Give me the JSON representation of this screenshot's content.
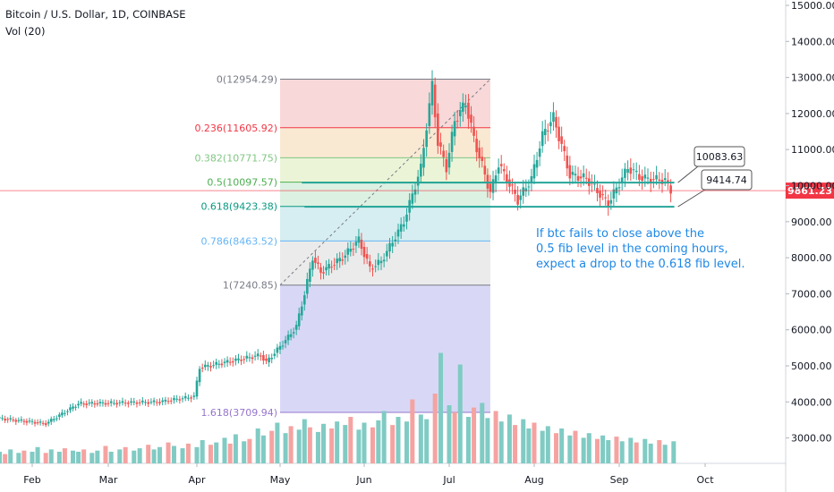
{
  "header": {
    "symbol_title": "Bitcoin / U.S. Dollar, 1D, COINBASE",
    "volume_indicator": "Vol (20)"
  },
  "colors": {
    "up": "#26a69a",
    "down": "#ef5350",
    "price_line": "#f23645",
    "fib_line": "#26a69a",
    "annotation": "#1e88e5",
    "axis_bg": "#ffffff"
  },
  "chart_data": {
    "type": "candlestick",
    "title": "Bitcoin / U.S. Dollar, 1D, COINBASE",
    "x_months": [
      "Feb",
      "Mar",
      "Apr",
      "May",
      "Jun",
      "Jul",
      "Aug",
      "Sep",
      "Oct"
    ],
    "y_ticks": [
      "15000.00",
      "14000.00",
      "13000.00",
      "12000.00",
      "11000.00",
      "10000.00",
      "9000.00",
      "8000.00",
      "7000.00",
      "6000.00",
      "5000.00",
      "4000.00",
      "3000.00"
    ],
    "ylim": [
      2300,
      15200
    ],
    "current_price": "9861.23",
    "current_price_value": 9861.23,
    "price_path": [
      {
        "date": "2019-01-20",
        "price": 3550
      },
      {
        "date": "2019-02-07",
        "price": 3400
      },
      {
        "date": "2019-02-19",
        "price": 3950
      },
      {
        "date": "2019-03-20",
        "price": 4000
      },
      {
        "date": "2019-04-01",
        "price": 4150
      },
      {
        "date": "2019-04-03",
        "price": 4950
      },
      {
        "date": "2019-04-25",
        "price": 5300
      },
      {
        "date": "2019-04-27",
        "price": 5100
      },
      {
        "date": "2019-05-01",
        "price": 5450
      },
      {
        "date": "2019-05-05",
        "price": 5800
      },
      {
        "date": "2019-05-08",
        "price": 6100
      },
      {
        "date": "2019-05-11",
        "price": 7000
      },
      {
        "date": "2019-05-14",
        "price": 8000
      },
      {
        "date": "2019-05-17",
        "price": 7600
      },
      {
        "date": "2019-05-25",
        "price": 8000
      },
      {
        "date": "2019-05-31",
        "price": 8500
      },
      {
        "date": "2019-06-04",
        "price": 7700
      },
      {
        "date": "2019-06-08",
        "price": 7900
      },
      {
        "date": "2019-06-16",
        "price": 9000
      },
      {
        "date": "2019-06-22",
        "price": 10500
      },
      {
        "date": "2019-06-26",
        "price": 12800
      },
      {
        "date": "2019-06-28",
        "price": 11200
      },
      {
        "date": "2019-07-01",
        "price": 10500
      },
      {
        "date": "2019-07-04",
        "price": 11800
      },
      {
        "date": "2019-07-08",
        "price": 12300
      },
      {
        "date": "2019-07-11",
        "price": 11300
      },
      {
        "date": "2019-07-17",
        "price": 9800
      },
      {
        "date": "2019-07-20",
        "price": 10600
      },
      {
        "date": "2019-07-27",
        "price": 9600
      },
      {
        "date": "2019-08-01",
        "price": 10200
      },
      {
        "date": "2019-08-05",
        "price": 11400
      },
      {
        "date": "2019-08-09",
        "price": 11900
      },
      {
        "date": "2019-08-15",
        "price": 10300
      },
      {
        "date": "2019-08-21",
        "price": 10200
      },
      {
        "date": "2019-08-29",
        "price": 9500
      },
      {
        "date": "2019-09-05",
        "price": 10500
      },
      {
        "date": "2019-09-10",
        "price": 10200
      },
      {
        "date": "2019-09-18",
        "price": 10150
      },
      {
        "date": "2019-09-20",
        "price": 9861
      }
    ],
    "volume_relative_levels": [
      0.1,
      0.08,
      0.12,
      0.09,
      0.11,
      0.1,
      0.14,
      0.09,
      0.12,
      0.1,
      0.13,
      0.11,
      0.1,
      0.12,
      0.09,
      0.11,
      0.15,
      0.1,
      0.12,
      0.14,
      0.11,
      0.13,
      0.16,
      0.12,
      0.14,
      0.18,
      0.15,
      0.13,
      0.17,
      0.14,
      0.2,
      0.16,
      0.18,
      0.22,
      0.17,
      0.25,
      0.19,
      0.21,
      0.3,
      0.24,
      0.28,
      0.35,
      0.26,
      0.32,
      0.29,
      0.38,
      0.31,
      0.27,
      0.34,
      0.3,
      0.36,
      0.33,
      0.4,
      0.29,
      0.35,
      0.31,
      0.37,
      0.45,
      0.33,
      0.4,
      0.36,
      0.55,
      0.42,
      0.38,
      0.6,
      0.95,
      0.5,
      0.44,
      0.85,
      0.4,
      0.48,
      0.52,
      0.39,
      0.45,
      0.36,
      0.42,
      0.33,
      0.38,
      0.3,
      0.35,
      0.28,
      0.32,
      0.26,
      0.3,
      0.24,
      0.28,
      0.22,
      0.26,
      0.21,
      0.24,
      0.2,
      0.23,
      0.19,
      0.22,
      0.18,
      0.21,
      0.17,
      0.2,
      0.16,
      0.19
    ],
    "fib_levels": [
      {
        "label": "0(12954.29)",
        "value": 12954.29,
        "color": "#787b86",
        "fill": "#f5c7c7"
      },
      {
        "label": "0.236(11605.92)",
        "value": 11605.92,
        "color": "#f23645",
        "fill": "#f6e0c0"
      },
      {
        "label": "0.382(10771.75)",
        "value": 10771.75,
        "color": "#81c784",
        "fill": "#e4f0c6"
      },
      {
        "label": "0.5(10097.57)",
        "value": 10097.57,
        "color": "#4caf50",
        "fill": "#cdebd5"
      },
      {
        "label": "0.618(9423.38)",
        "value": 9423.38,
        "color": "#089981",
        "fill": "#c5e7eb"
      },
      {
        "label": "0.786(8463.52)",
        "value": 8463.52,
        "color": "#64b5f6",
        "fill": "#e2e2e2"
      },
      {
        "label": "1(7240.85)",
        "value": 7240.85,
        "color": "#787b86",
        "fill": "#c8c8f2"
      },
      {
        "label": "1.618(3709.94)",
        "value": 3709.94,
        "color": "#9575cd",
        "fill": null
      }
    ],
    "fib_projection_lines": [
      {
        "value": 10083.63,
        "label": "10083.63"
      },
      {
        "value": 9414.74,
        "label": "9414.74"
      }
    ],
    "annotation_lines": [
      "If btc fails to close above the",
      "0.5 fib level in the coming hours,",
      "expect a drop to the 0.618 fib level."
    ],
    "fib_time_range": [
      "2019-05-01",
      "2019-07-16"
    ],
    "projection_line_start": "2019-07-16",
    "projection_line_end": "2019-09-24"
  }
}
